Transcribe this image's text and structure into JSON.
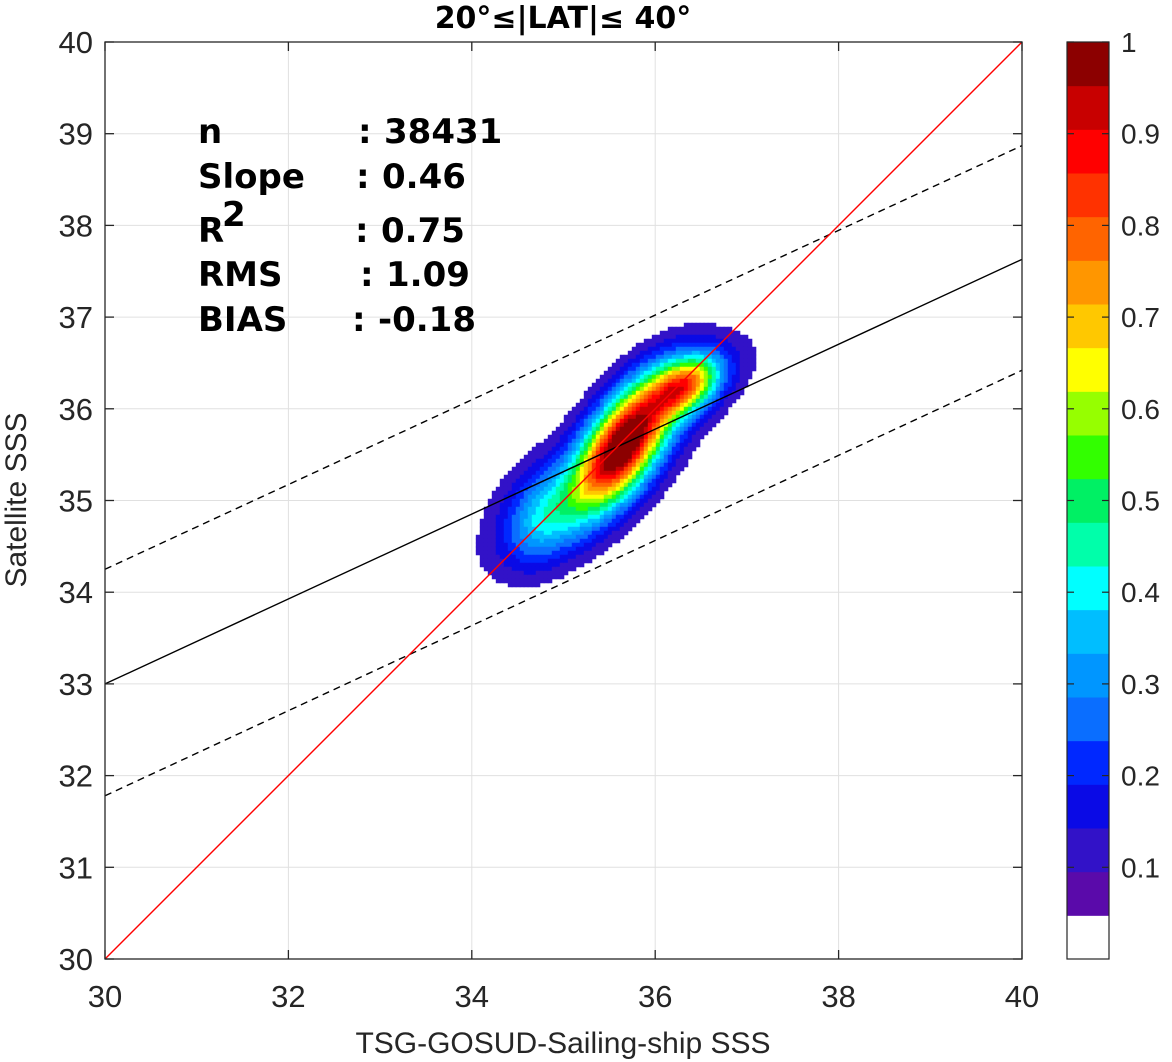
{
  "chart_data": {
    "type": "contour",
    "title": "20°≤|LAT|≤ 40°",
    "xlabel": "TSG-GOSUD-Sailing-ship SSS",
    "ylabel": "Satellite SSS",
    "xlim": [
      30,
      40
    ],
    "ylim": [
      30,
      40
    ],
    "xticks": [
      "30",
      "32",
      "34",
      "36",
      "38",
      "40"
    ],
    "yticks": [
      "30",
      "31",
      "32",
      "33",
      "34",
      "35",
      "36",
      "37",
      "38",
      "39",
      "40"
    ],
    "grid": true,
    "stats": [
      {
        "label": "n",
        "sep": ":",
        "value": "38431"
      },
      {
        "label": "Slope",
        "sep": ":",
        "value": "0.46"
      },
      {
        "label": "R",
        "sup": "2",
        "sep": ":",
        "value": "0.75"
      },
      {
        "label": "RMS",
        "sep": ":",
        "value": "1.09"
      },
      {
        "label": "BIAS",
        "sep": ":",
        "value": "-0.18"
      }
    ],
    "lines": {
      "identity": {
        "color": "#ff0000",
        "x": [
          30,
          40
        ],
        "y": [
          30,
          40
        ]
      },
      "regression": {
        "color": "#000000",
        "style": "solid",
        "x": [
          30,
          40
        ],
        "y": [
          33.0,
          37.63
        ]
      },
      "upper_bound": {
        "color": "#000000",
        "style": "dashed",
        "x": [
          30,
          40
        ],
        "y": [
          34.25,
          38.87
        ]
      },
      "lower_bound": {
        "color": "#000000",
        "style": "dashed",
        "x": [
          30,
          40
        ],
        "y": [
          31.78,
          36.42
        ]
      }
    },
    "density_peaks": [
      {
        "x": 35.65,
        "y": 35.55,
        "value": 1.0
      },
      {
        "x": 36.35,
        "y": 36.27,
        "value": 0.95
      },
      {
        "x": 34.75,
        "y": 34.8,
        "value": 0.4
      }
    ],
    "colorbar": {
      "ticks": [
        "0.1",
        "0.2",
        "0.3",
        "0.4",
        "0.5",
        "0.6",
        "0.7",
        "0.8",
        "0.9",
        "1"
      ],
      "levels": [
        0.0,
        0.05,
        0.1,
        0.15,
        0.2,
        0.25,
        0.3,
        0.35,
        0.4,
        0.45,
        0.5,
        0.55,
        0.6,
        0.65,
        0.7,
        0.75,
        0.8,
        0.85,
        0.9,
        0.95,
        1.0
      ],
      "colors": [
        "#ffffff",
        "#5a0aaa",
        "#3212c8",
        "#0a0ae6",
        "#0028ff",
        "#0a6eff",
        "#0096ff",
        "#00beff",
        "#00ffff",
        "#00ffaa",
        "#00f064",
        "#32ff00",
        "#96ff00",
        "#ffff00",
        "#ffc800",
        "#ff9600",
        "#ff6400",
        "#ff3200",
        "#ff0000",
        "#c80000",
        "#8c0000"
      ]
    }
  }
}
